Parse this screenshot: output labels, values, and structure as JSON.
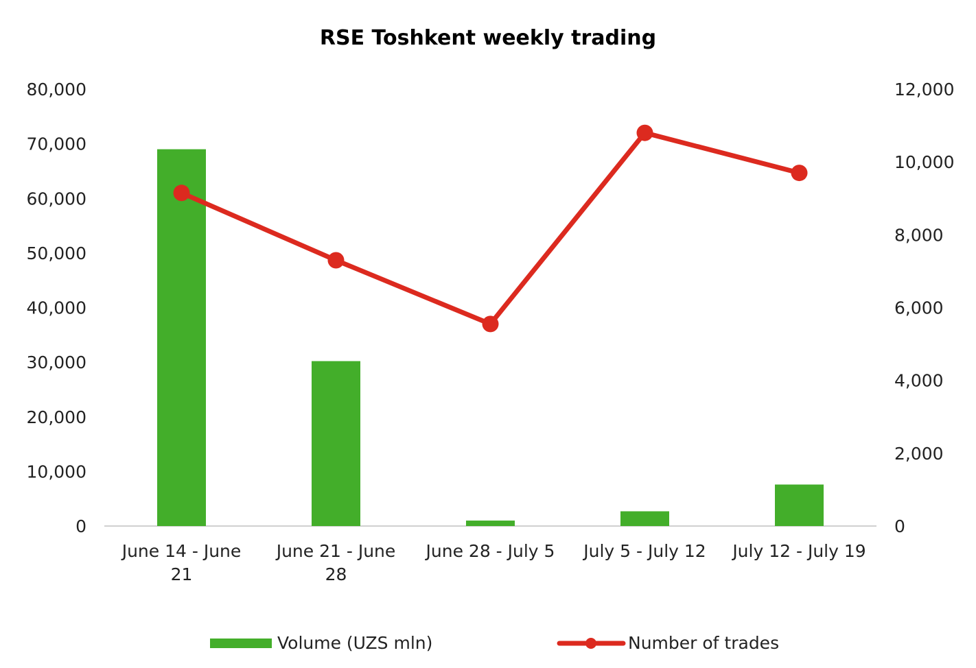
{
  "chart_data": {
    "type": "bar",
    "title": "RSE Toshkent weekly trading",
    "categories": [
      [
        "June 14 - June",
        "21"
      ],
      [
        "June 21 - June",
        "28"
      ],
      [
        "June 28 - July 5"
      ],
      [
        "July 5 - July 12"
      ],
      [
        "July 12 - July 19"
      ]
    ],
    "series": [
      {
        "name": "Volume (UZS mln)",
        "type": "bar",
        "axis": "left",
        "color": "#43ae2a",
        "values": [
          69000,
          30200,
          1000,
          2700,
          7600
        ]
      },
      {
        "name": "Number of trades",
        "type": "line",
        "axis": "right",
        "color": "#dc2a1f",
        "values": [
          9150,
          7300,
          5550,
          10800,
          9700
        ]
      }
    ],
    "y_left": {
      "lim": [
        0,
        80000
      ],
      "ticks": [
        "0",
        "10,000",
        "20,000",
        "30,000",
        "40,000",
        "50,000",
        "60,000",
        "70,000",
        "80,000"
      ]
    },
    "y_right": {
      "lim": [
        0,
        12000
      ],
      "ticks": [
        "0",
        "2,000",
        "4,000",
        "6,000",
        "8,000",
        "10,000",
        "12,000"
      ]
    },
    "grid": false,
    "legend_position": "bottom"
  }
}
